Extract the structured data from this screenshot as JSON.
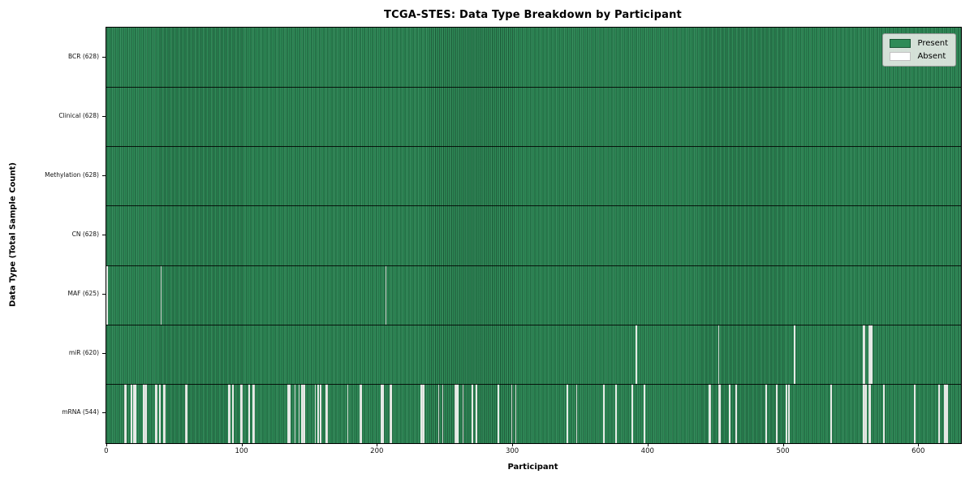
{
  "figure": {
    "title": "TCGA-STES: Data Type Breakdown by Participant",
    "xlabel": "Participant",
    "ylabel": "Data Type (Total Sample Count)"
  },
  "chart_data": {
    "type": "heatmap",
    "title": "TCGA-STES: Data Type Breakdown by Participant",
    "xlabel": "Participant",
    "ylabel": "Data Type (Total Sample Count)",
    "n_participants": 628,
    "x_ticks": [
      0,
      100,
      200,
      300,
      400,
      500,
      600
    ],
    "x_range": [
      -0.5,
      631
    ],
    "grid": false,
    "legend_position": "upper right",
    "legend_items": [
      {
        "label": "Present",
        "color": "#2e8b57",
        "edge": "#1a5736"
      },
      {
        "label": "Absent",
        "color": "#ffffff",
        "edge": "#c0c0c0"
      }
    ],
    "rows": [
      {
        "data_type": "BCR",
        "label": "BCR (628)",
        "present_count": 628,
        "absent_count": 0,
        "absent_participants": []
      },
      {
        "data_type": "Clinical",
        "label": "Clinical (628)",
        "present_count": 628,
        "absent_count": 0,
        "absent_participants": []
      },
      {
        "data_type": "Methylation",
        "label": "Methylation (628)",
        "present_count": 628,
        "absent_count": 0,
        "absent_participants": []
      },
      {
        "data_type": "CN",
        "label": "CN (628)",
        "present_count": 628,
        "absent_count": 0,
        "absent_participants": []
      },
      {
        "data_type": "MAF",
        "label": "MAF (625)",
        "present_count": 625,
        "absent_count": 3,
        "absent_participants": [
          0,
          40,
          206
        ]
      },
      {
        "data_type": "miR",
        "label": "miR (620)",
        "present_count": 620,
        "absent_count": 8,
        "absent_participants": [
          391,
          452,
          508,
          559,
          560,
          563,
          564,
          565
        ]
      },
      {
        "data_type": "mRNA",
        "label": "mRNA (544)",
        "present_count": 544,
        "absent_count": 84,
        "absent_participants": [
          13,
          14,
          18,
          20,
          21,
          27,
          28,
          29,
          36,
          37,
          39,
          42,
          43,
          58,
          59,
          90,
          91,
          93,
          99,
          100,
          105,
          108,
          109,
          134,
          135,
          139,
          142,
          144,
          145,
          146,
          154,
          156,
          158,
          162,
          163,
          178,
          187,
          188,
          203,
          204,
          209,
          210,
          232,
          233,
          234,
          245,
          248,
          257,
          258,
          259,
          263,
          270,
          273,
          289,
          299,
          302,
          340,
          347,
          367,
          376,
          388,
          397,
          445,
          446,
          452,
          453,
          460,
          465,
          487,
          495,
          502,
          504,
          535,
          559,
          560,
          561,
          563,
          564,
          574,
          597,
          615,
          619,
          620,
          621
        ]
      }
    ]
  }
}
